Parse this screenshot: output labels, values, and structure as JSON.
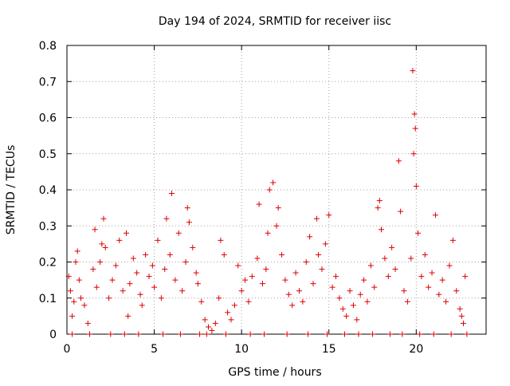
{
  "chart_data": {
    "type": "scatter",
    "title": "Day 194 of 2024, SRMTID for receiver iisc",
    "xlabel": "GPS time / hours",
    "ylabel": "SRMTID / TECUs",
    "xlim": [
      0,
      24
    ],
    "ylim": [
      0,
      0.8
    ],
    "x_ticks": [
      0,
      5,
      10,
      15,
      20
    ],
    "y_ticks": [
      0,
      0.1,
      0.2,
      0.3,
      0.4,
      0.5,
      0.6,
      0.7,
      0.8
    ],
    "x_tick_labels": [
      "0",
      "5",
      "10",
      "15",
      "20"
    ],
    "y_tick_labels": [
      "0",
      "0.1",
      "0.2",
      "0.3",
      "0.4",
      "0.5",
      "0.6",
      "0.7",
      "0.8"
    ],
    "grid": true,
    "marker": "+",
    "color": "#dd0000",
    "series": [
      {
        "name": "SRMTID",
        "points": [
          [
            0.1,
            0.16
          ],
          [
            0.2,
            0.12
          ],
          [
            0.3,
            0.05
          ],
          [
            0.4,
            0.09
          ],
          [
            0.5,
            0.2
          ],
          [
            0.6,
            0.23
          ],
          [
            0.7,
            0.15
          ],
          [
            0.8,
            0.1
          ],
          [
            1.0,
            0.08
          ],
          [
            1.2,
            0.03
          ],
          [
            1.5,
            0.18
          ],
          [
            1.6,
            0.29
          ],
          [
            1.7,
            0.13
          ],
          [
            1.9,
            0.2
          ],
          [
            2.0,
            0.25
          ],
          [
            2.1,
            0.32
          ],
          [
            2.2,
            0.24
          ],
          [
            2.4,
            0.1
          ],
          [
            2.6,
            0.15
          ],
          [
            2.8,
            0.19
          ],
          [
            3.0,
            0.26
          ],
          [
            3.2,
            0.12
          ],
          [
            3.4,
            0.28
          ],
          [
            3.5,
            0.05
          ],
          [
            3.6,
            0.14
          ],
          [
            3.8,
            0.21
          ],
          [
            4.0,
            0.17
          ],
          [
            4.2,
            0.11
          ],
          [
            4.3,
            0.08
          ],
          [
            4.5,
            0.22
          ],
          [
            4.7,
            0.16
          ],
          [
            4.9,
            0.19
          ],
          [
            5.0,
            0.13
          ],
          [
            5.2,
            0.26
          ],
          [
            5.4,
            0.1
          ],
          [
            5.6,
            0.18
          ],
          [
            5.7,
            0.32
          ],
          [
            5.9,
            0.22
          ],
          [
            6.0,
            0.39
          ],
          [
            6.2,
            0.15
          ],
          [
            6.4,
            0.28
          ],
          [
            6.6,
            0.12
          ],
          [
            6.8,
            0.2
          ],
          [
            6.9,
            0.35
          ],
          [
            7.0,
            0.31
          ],
          [
            7.2,
            0.24
          ],
          [
            7.4,
            0.17
          ],
          [
            7.5,
            0.14
          ],
          [
            7.7,
            0.09
          ],
          [
            7.9,
            0.04
          ],
          [
            8.1,
            0.02
          ],
          [
            8.3,
            0.01
          ],
          [
            8.5,
            0.03
          ],
          [
            8.7,
            0.1
          ],
          [
            8.8,
            0.26
          ],
          [
            9.0,
            0.22
          ],
          [
            9.2,
            0.06
          ],
          [
            9.4,
            0.04
          ],
          [
            9.6,
            0.08
          ],
          [
            9.8,
            0.19
          ],
          [
            10.0,
            0.12
          ],
          [
            10.2,
            0.15
          ],
          [
            10.4,
            0.09
          ],
          [
            10.6,
            0.16
          ],
          [
            10.9,
            0.21
          ],
          [
            11.0,
            0.36
          ],
          [
            11.2,
            0.14
          ],
          [
            11.4,
            0.18
          ],
          [
            11.5,
            0.28
          ],
          [
            11.6,
            0.4
          ],
          [
            11.8,
            0.42
          ],
          [
            12.0,
            0.3
          ],
          [
            12.1,
            0.35
          ],
          [
            12.3,
            0.22
          ],
          [
            12.5,
            0.15
          ],
          [
            12.7,
            0.11
          ],
          [
            12.9,
            0.08
          ],
          [
            13.1,
            0.17
          ],
          [
            13.3,
            0.12
          ],
          [
            13.5,
            0.09
          ],
          [
            13.7,
            0.2
          ],
          [
            13.9,
            0.27
          ],
          [
            14.1,
            0.14
          ],
          [
            14.3,
            0.32
          ],
          [
            14.4,
            0.22
          ],
          [
            14.6,
            0.18
          ],
          [
            14.8,
            0.25
          ],
          [
            15.0,
            0.33
          ],
          [
            15.2,
            0.13
          ],
          [
            15.4,
            0.16
          ],
          [
            15.6,
            0.1
          ],
          [
            15.8,
            0.07
          ],
          [
            16.0,
            0.05
          ],
          [
            16.2,
            0.12
          ],
          [
            16.4,
            0.08
          ],
          [
            16.6,
            0.04
          ],
          [
            16.8,
            0.11
          ],
          [
            17.0,
            0.15
          ],
          [
            17.2,
            0.09
          ],
          [
            17.4,
            0.19
          ],
          [
            17.6,
            0.13
          ],
          [
            17.8,
            0.35
          ],
          [
            17.9,
            0.37
          ],
          [
            18.0,
            0.29
          ],
          [
            18.2,
            0.21
          ],
          [
            18.4,
            0.16
          ],
          [
            18.6,
            0.24
          ],
          [
            18.8,
            0.18
          ],
          [
            19.0,
            0.48
          ],
          [
            19.1,
            0.34
          ],
          [
            19.3,
            0.12
          ],
          [
            19.5,
            0.09
          ],
          [
            19.7,
            0.21
          ],
          [
            19.8,
            0.73
          ],
          [
            19.85,
            0.5
          ],
          [
            19.9,
            0.61
          ],
          [
            19.95,
            0.57
          ],
          [
            20.0,
            0.41
          ],
          [
            20.1,
            0.28
          ],
          [
            20.3,
            0.16
          ],
          [
            20.5,
            0.22
          ],
          [
            20.7,
            0.13
          ],
          [
            20.9,
            0.17
          ],
          [
            21.1,
            0.33
          ],
          [
            21.3,
            0.11
          ],
          [
            21.5,
            0.15
          ],
          [
            21.7,
            0.09
          ],
          [
            21.9,
            0.19
          ],
          [
            22.1,
            0.26
          ],
          [
            22.3,
            0.12
          ],
          [
            22.5,
            0.07
          ],
          [
            22.6,
            0.05
          ],
          [
            22.7,
            0.03
          ],
          [
            22.8,
            0.16
          ],
          [
            0.3,
            0.0
          ],
          [
            1.3,
            0.0
          ],
          [
            2.5,
            0.0
          ],
          [
            3.3,
            0.0
          ],
          [
            4.1,
            0.0
          ],
          [
            5.5,
            0.0
          ],
          [
            6.5,
            0.0
          ],
          [
            7.6,
            0.0
          ],
          [
            8.0,
            0.0
          ],
          [
            9.1,
            0.0
          ],
          [
            10.5,
            0.0
          ],
          [
            11.3,
            0.0
          ],
          [
            12.6,
            0.0
          ],
          [
            13.8,
            0.0
          ],
          [
            14.9,
            0.0
          ],
          [
            15.9,
            0.0
          ],
          [
            16.7,
            0.0
          ],
          [
            17.5,
            0.0
          ],
          [
            18.5,
            0.0
          ],
          [
            19.2,
            0.0
          ],
          [
            20.2,
            0.0
          ],
          [
            21.0,
            0.0
          ],
          [
            22.0,
            0.0
          ],
          [
            22.9,
            0.0
          ]
        ]
      }
    ]
  }
}
